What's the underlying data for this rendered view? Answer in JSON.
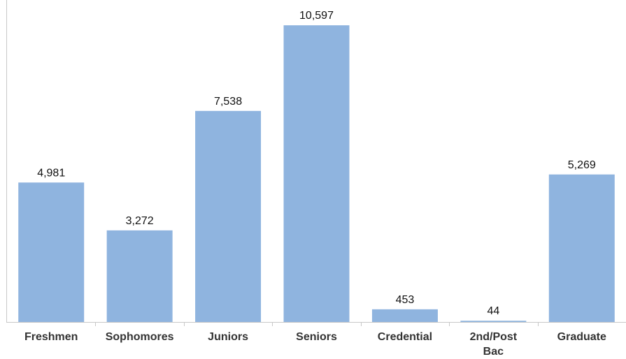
{
  "chart_data": {
    "type": "bar",
    "title": "",
    "xlabel": "",
    "ylabel": "",
    "categories": [
      [
        "Freshmen"
      ],
      [
        "Sophomores"
      ],
      [
        "Juniors"
      ],
      [
        "Seniors"
      ],
      [
        "Credential"
      ],
      [
        "2nd/Post",
        "Bac"
      ],
      [
        "Graduate"
      ]
    ],
    "values": [
      4981,
      3272,
      7538,
      10597,
      453,
      44,
      5269
    ],
    "value_labels": [
      "4,981",
      "3,272",
      "7,538",
      "10,597",
      "453",
      "44",
      "5,269"
    ],
    "ylim": [
      0,
      11500
    ],
    "grid": false,
    "legend": "none",
    "colors": {
      "bar": "#8fb4df",
      "axis": "#c8c8c8",
      "text": "#111111",
      "category_text": "#333333"
    }
  }
}
